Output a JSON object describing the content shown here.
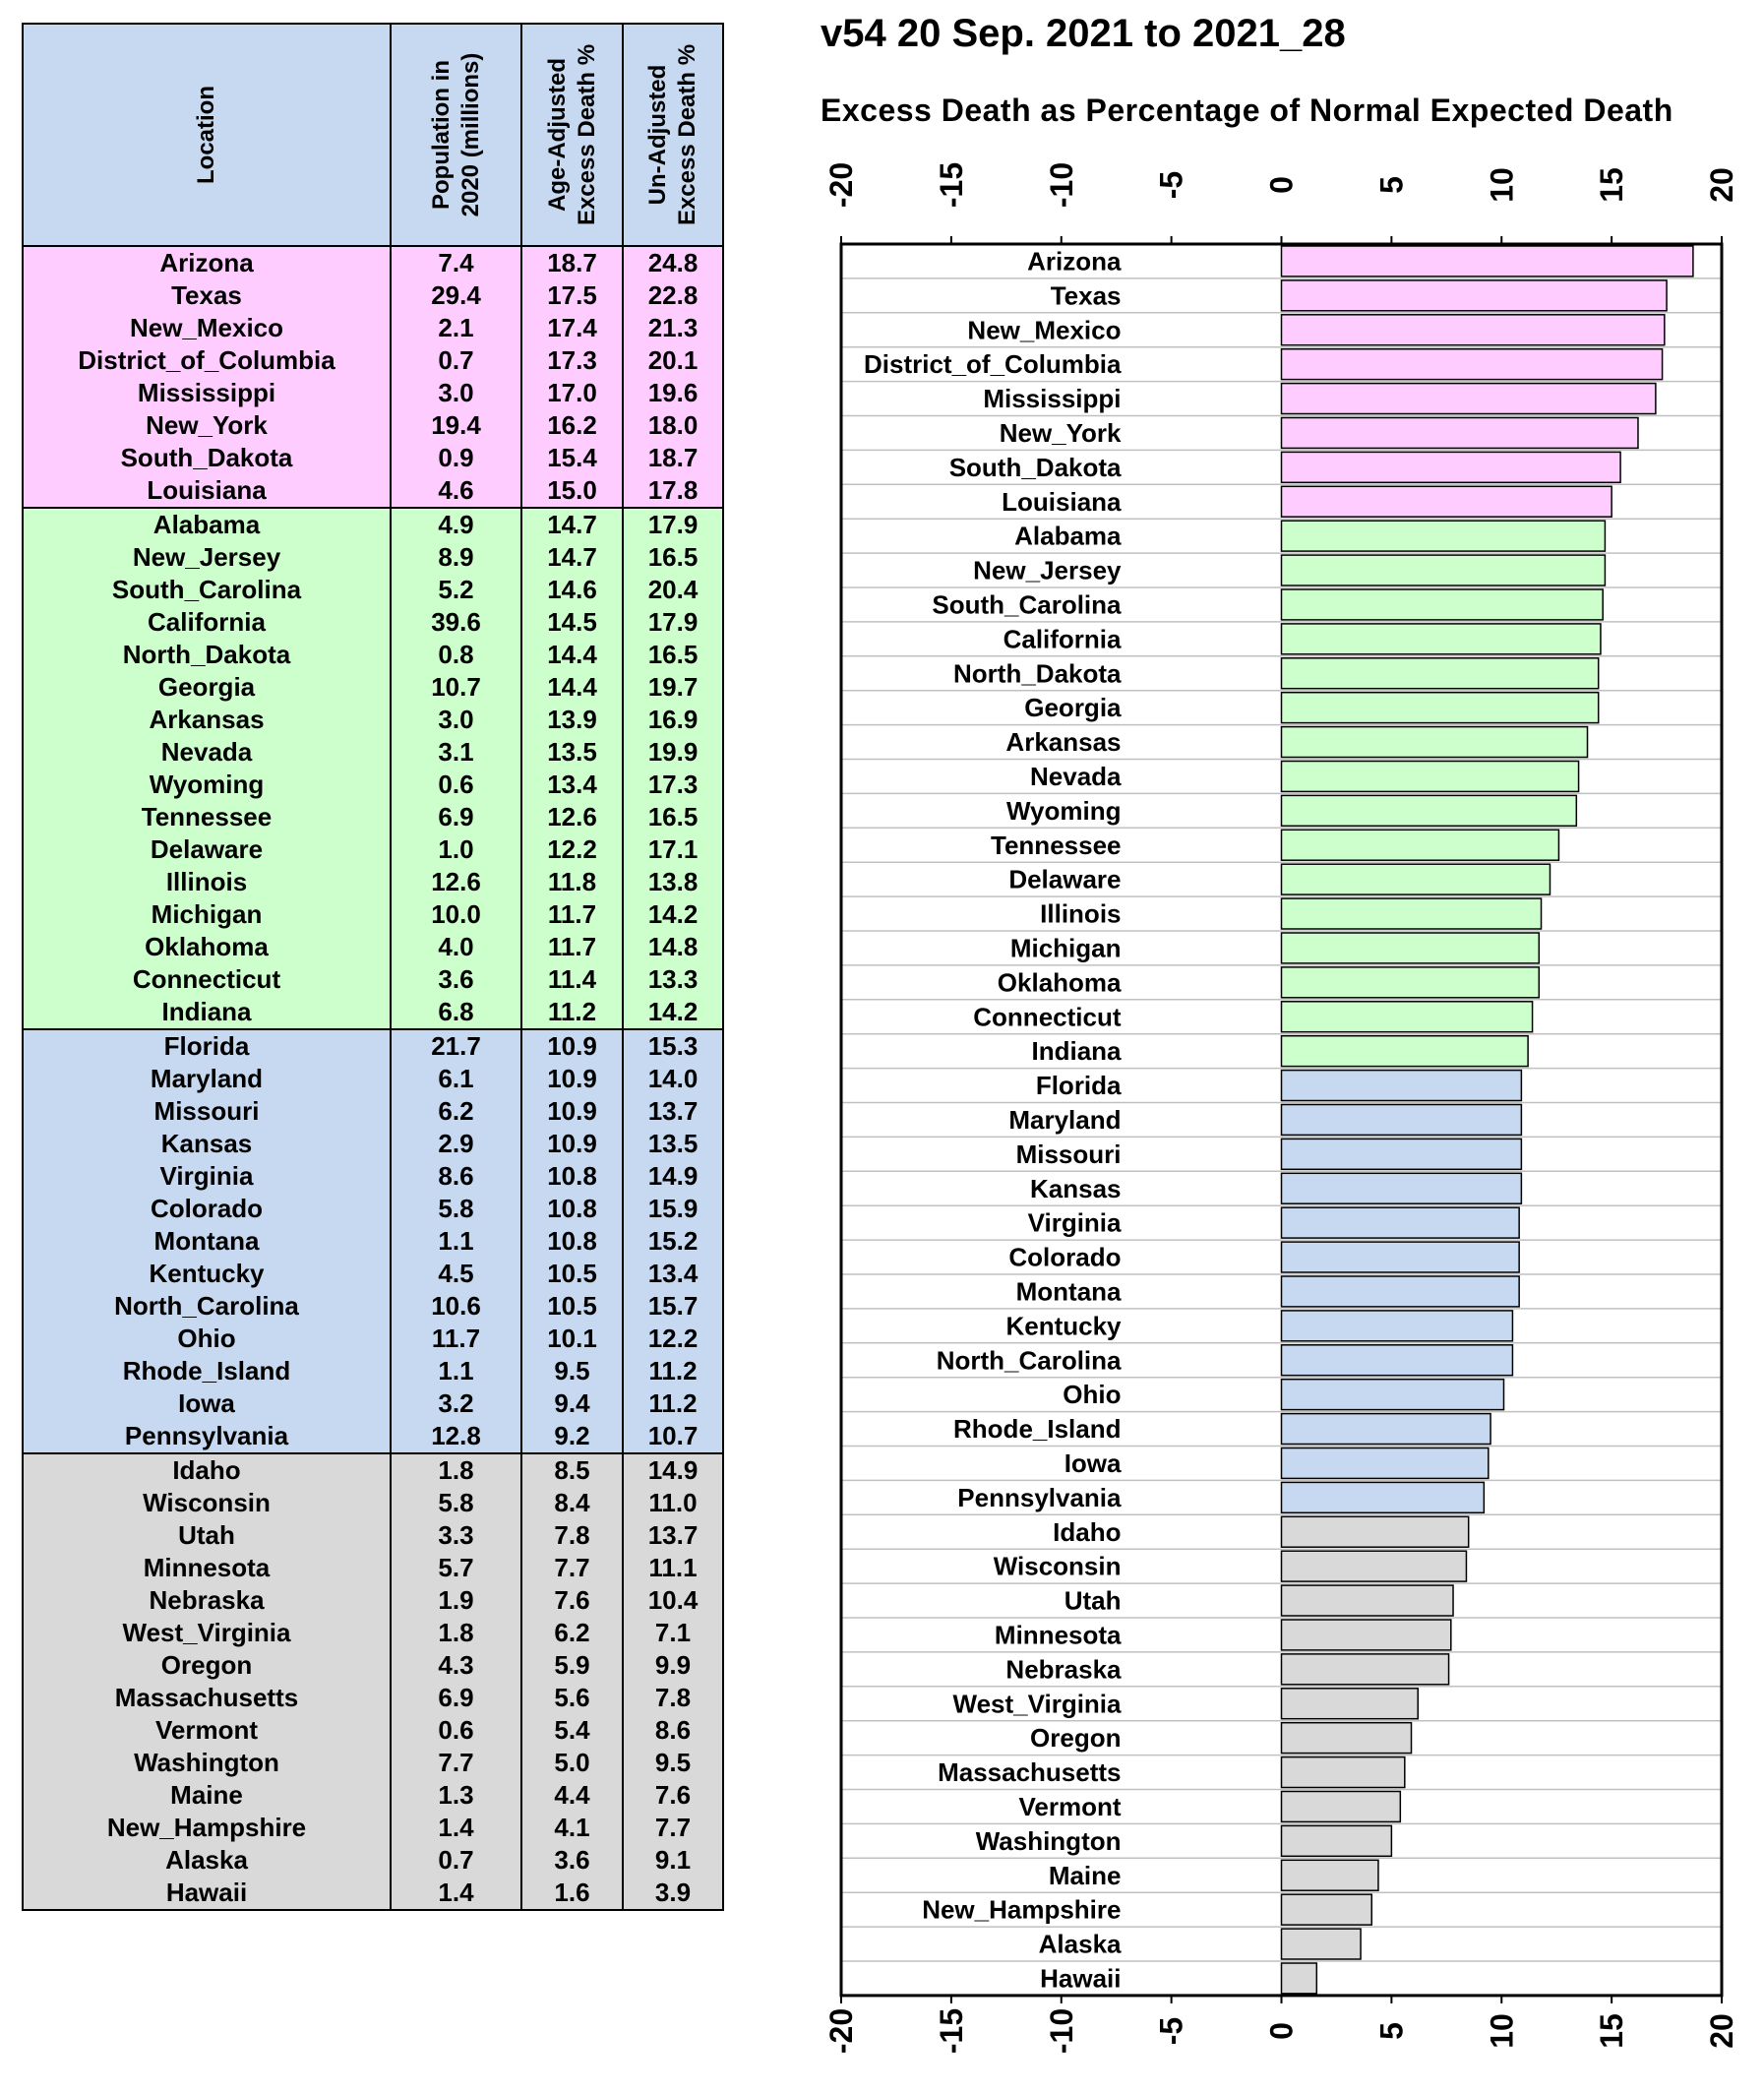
{
  "table": {
    "headers": {
      "location": "Location",
      "population": "Population in\n2020 (millions)",
      "age_adjusted": "Age-Adjusted\nExcess Death %",
      "un_adjusted": "Un-Adjusted\nExcess Death %"
    },
    "rows": [
      {
        "location": "Arizona",
        "population": "7.4",
        "age_adjusted": "18.7",
        "un_adjusted": "24.8",
        "group": "pink"
      },
      {
        "location": "Texas",
        "population": "29.4",
        "age_adjusted": "17.5",
        "un_adjusted": "22.8",
        "group": "pink"
      },
      {
        "location": "New_Mexico",
        "population": "2.1",
        "age_adjusted": "17.4",
        "un_adjusted": "21.3",
        "group": "pink"
      },
      {
        "location": "District_of_Columbia",
        "population": "0.7",
        "age_adjusted": "17.3",
        "un_adjusted": "20.1",
        "group": "pink"
      },
      {
        "location": "Mississippi",
        "population": "3.0",
        "age_adjusted": "17.0",
        "un_adjusted": "19.6",
        "group": "pink"
      },
      {
        "location": "New_York",
        "population": "19.4",
        "age_adjusted": "16.2",
        "un_adjusted": "18.0",
        "group": "pink"
      },
      {
        "location": "South_Dakota",
        "population": "0.9",
        "age_adjusted": "15.4",
        "un_adjusted": "18.7",
        "group": "pink"
      },
      {
        "location": "Louisiana",
        "population": "4.6",
        "age_adjusted": "15.0",
        "un_adjusted": "17.8",
        "group": "pink"
      },
      {
        "location": "Alabama",
        "population": "4.9",
        "age_adjusted": "14.7",
        "un_adjusted": "17.9",
        "group": "green"
      },
      {
        "location": "New_Jersey",
        "population": "8.9",
        "age_adjusted": "14.7",
        "un_adjusted": "16.5",
        "group": "green"
      },
      {
        "location": "South_Carolina",
        "population": "5.2",
        "age_adjusted": "14.6",
        "un_adjusted": "20.4",
        "group": "green"
      },
      {
        "location": "California",
        "population": "39.6",
        "age_adjusted": "14.5",
        "un_adjusted": "17.9",
        "group": "green"
      },
      {
        "location": "North_Dakota",
        "population": "0.8",
        "age_adjusted": "14.4",
        "un_adjusted": "16.5",
        "group": "green"
      },
      {
        "location": "Georgia",
        "population": "10.7",
        "age_adjusted": "14.4",
        "un_adjusted": "19.7",
        "group": "green"
      },
      {
        "location": "Arkansas",
        "population": "3.0",
        "age_adjusted": "13.9",
        "un_adjusted": "16.9",
        "group": "green"
      },
      {
        "location": "Nevada",
        "population": "3.1",
        "age_adjusted": "13.5",
        "un_adjusted": "19.9",
        "group": "green"
      },
      {
        "location": "Wyoming",
        "population": "0.6",
        "age_adjusted": "13.4",
        "un_adjusted": "17.3",
        "group": "green"
      },
      {
        "location": "Tennessee",
        "population": "6.9",
        "age_adjusted": "12.6",
        "un_adjusted": "16.5",
        "group": "green"
      },
      {
        "location": "Delaware",
        "population": "1.0",
        "age_adjusted": "12.2",
        "un_adjusted": "17.1",
        "group": "green"
      },
      {
        "location": "Illinois",
        "population": "12.6",
        "age_adjusted": "11.8",
        "un_adjusted": "13.8",
        "group": "green"
      },
      {
        "location": "Michigan",
        "population": "10.0",
        "age_adjusted": "11.7",
        "un_adjusted": "14.2",
        "group": "green"
      },
      {
        "location": "Oklahoma",
        "population": "4.0",
        "age_adjusted": "11.7",
        "un_adjusted": "14.8",
        "group": "green"
      },
      {
        "location": "Connecticut",
        "population": "3.6",
        "age_adjusted": "11.4",
        "un_adjusted": "13.3",
        "group": "green"
      },
      {
        "location": "Indiana",
        "population": "6.8",
        "age_adjusted": "11.2",
        "un_adjusted": "14.2",
        "group": "green"
      },
      {
        "location": "Florida",
        "population": "21.7",
        "age_adjusted": "10.9",
        "un_adjusted": "15.3",
        "group": "blue"
      },
      {
        "location": "Maryland",
        "population": "6.1",
        "age_adjusted": "10.9",
        "un_adjusted": "14.0",
        "group": "blue"
      },
      {
        "location": "Missouri",
        "population": "6.2",
        "age_adjusted": "10.9",
        "un_adjusted": "13.7",
        "group": "blue"
      },
      {
        "location": "Kansas",
        "population": "2.9",
        "age_adjusted": "10.9",
        "un_adjusted": "13.5",
        "group": "blue"
      },
      {
        "location": "Virginia",
        "population": "8.6",
        "age_adjusted": "10.8",
        "un_adjusted": "14.9",
        "group": "blue"
      },
      {
        "location": "Colorado",
        "population": "5.8",
        "age_adjusted": "10.8",
        "un_adjusted": "15.9",
        "group": "blue"
      },
      {
        "location": "Montana",
        "population": "1.1",
        "age_adjusted": "10.8",
        "un_adjusted": "15.2",
        "group": "blue"
      },
      {
        "location": "Kentucky",
        "population": "4.5",
        "age_adjusted": "10.5",
        "un_adjusted": "13.4",
        "group": "blue"
      },
      {
        "location": "North_Carolina",
        "population": "10.6",
        "age_adjusted": "10.5",
        "un_adjusted": "15.7",
        "group": "blue"
      },
      {
        "location": "Ohio",
        "population": "11.7",
        "age_adjusted": "10.1",
        "un_adjusted": "12.2",
        "group": "blue"
      },
      {
        "location": "Rhode_Island",
        "population": "1.1",
        "age_adjusted": "9.5",
        "un_adjusted": "11.2",
        "group": "blue"
      },
      {
        "location": "Iowa",
        "population": "3.2",
        "age_adjusted": "9.4",
        "un_adjusted": "11.2",
        "group": "blue"
      },
      {
        "location": "Pennsylvania",
        "population": "12.8",
        "age_adjusted": "9.2",
        "un_adjusted": "10.7",
        "group": "blue"
      },
      {
        "location": "Idaho",
        "population": "1.8",
        "age_adjusted": "8.5",
        "un_adjusted": "14.9",
        "group": "gray"
      },
      {
        "location": "Wisconsin",
        "population": "5.8",
        "age_adjusted": "8.4",
        "un_adjusted": "11.0",
        "group": "gray"
      },
      {
        "location": "Utah",
        "population": "3.3",
        "age_adjusted": "7.8",
        "un_adjusted": "13.7",
        "group": "gray"
      },
      {
        "location": "Minnesota",
        "population": "5.7",
        "age_adjusted": "7.7",
        "un_adjusted": "11.1",
        "group": "gray"
      },
      {
        "location": "Nebraska",
        "population": "1.9",
        "age_adjusted": "7.6",
        "un_adjusted": "10.4",
        "group": "gray"
      },
      {
        "location": "West_Virginia",
        "population": "1.8",
        "age_adjusted": "6.2",
        "un_adjusted": "7.1",
        "group": "gray"
      },
      {
        "location": "Oregon",
        "population": "4.3",
        "age_adjusted": "5.9",
        "un_adjusted": "9.9",
        "group": "gray"
      },
      {
        "location": "Massachusetts",
        "population": "6.9",
        "age_adjusted": "5.6",
        "un_adjusted": "7.8",
        "group": "gray"
      },
      {
        "location": "Vermont",
        "population": "0.6",
        "age_adjusted": "5.4",
        "un_adjusted": "8.6",
        "group": "gray"
      },
      {
        "location": "Washington",
        "population": "7.7",
        "age_adjusted": "5.0",
        "un_adjusted": "9.5",
        "group": "gray"
      },
      {
        "location": "Maine",
        "population": "1.3",
        "age_adjusted": "4.4",
        "un_adjusted": "7.6",
        "group": "gray"
      },
      {
        "location": "New_Hampshire",
        "population": "1.4",
        "age_adjusted": "4.1",
        "un_adjusted": "7.7",
        "group": "gray"
      },
      {
        "location": "Alaska",
        "population": "0.7",
        "age_adjusted": "3.6",
        "un_adjusted": "9.1",
        "group": "gray"
      },
      {
        "location": "Hawaii",
        "population": "1.4",
        "age_adjusted": "1.6",
        "un_adjusted": "3.9",
        "group": "gray"
      }
    ]
  },
  "colors": {
    "pink": "#ffccff",
    "green": "#ccffcc",
    "blue": "#c6d9f0",
    "gray": "#d9d9d9",
    "header_bg": "#c6d9f0"
  },
  "chart_data": {
    "type": "bar",
    "orientation": "horizontal",
    "title": "v54 20 Sep. 2021 to 2021_28",
    "subtitle": "Excess Death as Percentage of Normal Expected Death",
    "xlim": [
      -20,
      20
    ],
    "x_ticks": [
      "-20",
      "-15",
      "-10",
      "-5",
      "0",
      "5",
      "10",
      "15",
      "20"
    ],
    "categories": [
      "Arizona",
      "Texas",
      "New_Mexico",
      "District_of_Columbia",
      "Mississippi",
      "New_York",
      "South_Dakota",
      "Louisiana",
      "Alabama",
      "New_Jersey",
      "South_Carolina",
      "California",
      "North_Dakota",
      "Georgia",
      "Arkansas",
      "Nevada",
      "Wyoming",
      "Tennessee",
      "Delaware",
      "Illinois",
      "Michigan",
      "Oklahoma",
      "Connecticut",
      "Indiana",
      "Florida",
      "Maryland",
      "Missouri",
      "Kansas",
      "Virginia",
      "Colorado",
      "Montana",
      "Kentucky",
      "North_Carolina",
      "Ohio",
      "Rhode_Island",
      "Iowa",
      "Pennsylvania",
      "Idaho",
      "Wisconsin",
      "Utah",
      "Minnesota",
      "Nebraska",
      "West_Virginia",
      "Oregon",
      "Massachusetts",
      "Vermont",
      "Washington",
      "Maine",
      "New_Hampshire",
      "Alaska",
      "Hawaii"
    ],
    "values": [
      18.7,
      17.5,
      17.4,
      17.3,
      17.0,
      16.2,
      15.4,
      15.0,
      14.7,
      14.7,
      14.6,
      14.5,
      14.4,
      14.4,
      13.9,
      13.5,
      13.4,
      12.6,
      12.2,
      11.8,
      11.7,
      11.7,
      11.4,
      11.2,
      10.9,
      10.9,
      10.9,
      10.9,
      10.8,
      10.8,
      10.8,
      10.5,
      10.5,
      10.1,
      9.5,
      9.4,
      9.2,
      8.5,
      8.4,
      7.8,
      7.7,
      7.6,
      6.2,
      5.9,
      5.6,
      5.4,
      5.0,
      4.4,
      4.1,
      3.6,
      1.6
    ],
    "grid": "horizontal lines between categories"
  }
}
